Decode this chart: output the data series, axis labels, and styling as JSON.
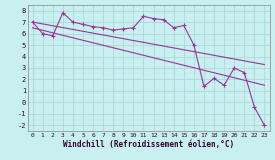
{
  "bg_color": "#c8f0f0",
  "grid_color": "#b0d8d8",
  "line_color": "#993399",
  "xlabel": "Windchill (Refroidissement éolien,°C)",
  "xlim": [
    -0.5,
    23.5
  ],
  "ylim": [
    -2.5,
    8.5
  ],
  "xticks": [
    0,
    1,
    2,
    3,
    4,
    5,
    6,
    7,
    8,
    9,
    10,
    11,
    12,
    13,
    14,
    15,
    16,
    17,
    18,
    19,
    20,
    21,
    22,
    23
  ],
  "yticks": [
    -2,
    -1,
    0,
    1,
    2,
    3,
    4,
    5,
    6,
    7,
    8
  ],
  "line1_x": [
    0,
    23
  ],
  "line1_y": [
    7.0,
    3.3
  ],
  "line2_x": [
    0,
    23
  ],
  "line2_y": [
    6.5,
    1.5
  ],
  "jagged_x": [
    0,
    1,
    2,
    3,
    4,
    5,
    6,
    7,
    8,
    9,
    10,
    11,
    12,
    13,
    14,
    15,
    16,
    17,
    18,
    19,
    20,
    21,
    22,
    23
  ],
  "jagged_y": [
    7.0,
    6.0,
    5.8,
    7.8,
    7.0,
    6.8,
    6.6,
    6.5,
    6.3,
    6.4,
    6.5,
    7.5,
    7.3,
    7.2,
    6.5,
    6.7,
    5.0,
    1.4,
    2.1,
    1.5,
    3.0,
    2.6,
    -0.4,
    -2.0
  ]
}
